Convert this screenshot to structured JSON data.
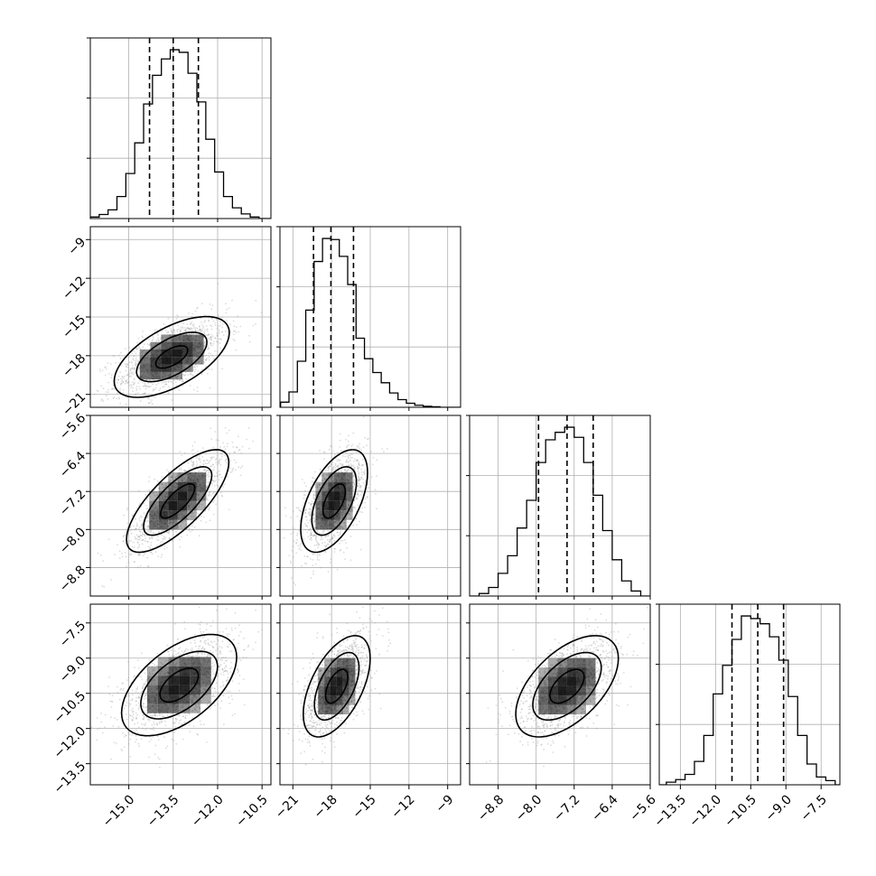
{
  "chart_data": {
    "type": "corner",
    "parameters": [
      {
        "range": [
          -16.3,
          -10.2
        ],
        "ticks": [
          "−15.0",
          "−13.5",
          "−12.0",
          "−10.5"
        ],
        "tick_values": [
          -15.0,
          -13.5,
          -12.0,
          -10.5
        ],
        "quantiles": [
          -14.3,
          -13.5,
          -12.65
        ],
        "hist_bins": [
          -16.3,
          -16.0,
          -15.7,
          -15.4,
          -15.1,
          -14.8,
          -14.5,
          -14.2,
          -13.9,
          -13.6,
          -13.3,
          -13.0,
          -12.7,
          -12.4,
          -12.1,
          -11.8,
          -11.5,
          -11.2,
          -10.9,
          -10.6
        ],
        "hist_counts": [
          3,
          8,
          17,
          43,
          88,
          148,
          224,
          280,
          312,
          330,
          325,
          284,
          228,
          155,
          91,
          43,
          21,
          9,
          3
        ]
      },
      {
        "range": [
          -22.0,
          -8.0
        ],
        "ticks": [
          "−21",
          "−18",
          "−15",
          "−12",
          "−9"
        ],
        "tick_values": [
          -21,
          -18,
          -15,
          -12,
          -9
        ],
        "quantiles": [
          -19.4,
          -18.05,
          -16.3
        ],
        "hist_bins": [
          -21.95,
          -21.3,
          -20.65,
          -20.0,
          -19.35,
          -18.7,
          -18.05,
          -17.4,
          -16.75,
          -16.1,
          -15.45,
          -14.8,
          -14.15,
          -13.5,
          -12.85,
          -12.2,
          -11.55,
          -10.9,
          -10.25,
          -9.6
        ],
        "hist_counts": [
          10,
          30,
          90,
          190,
          285,
          330,
          328,
          295,
          240,
          135,
          95,
          68,
          48,
          28,
          15,
          8,
          4,
          2,
          1
        ]
      },
      {
        "range": [
          -9.4,
          -5.6
        ],
        "ticks": [
          "−8.8",
          "−8.0",
          "−7.2",
          "−6.4",
          "−5.6"
        ],
        "tick_values": [
          -8.8,
          -8.0,
          -7.2,
          -6.4,
          -5.6
        ],
        "quantiles": [
          -7.95,
          -7.35,
          -6.8
        ],
        "hist_bins": [
          -9.2,
          -9.0,
          -8.8,
          -8.6,
          -8.4,
          -8.2,
          -8.0,
          -7.8,
          -7.6,
          -7.4,
          -7.2,
          -7.0,
          -6.8,
          -6.6,
          -6.4,
          -6.2,
          -6.0,
          -5.8
        ],
        "hist_counts": [
          5,
          17,
          45,
          80,
          135,
          190,
          265,
          310,
          325,
          335,
          315,
          265,
          200,
          130,
          72,
          30,
          10
        ]
      },
      {
        "range": [
          -14.4,
          -6.7
        ],
        "ticks": [
          "−13.5",
          "−12.0",
          "−10.5",
          "−9.0",
          "−7.5"
        ],
        "tick_values": [
          -13.5,
          -12.0,
          -10.5,
          -9.0,
          -7.5
        ],
        "quantiles": [
          -11.3,
          -10.2,
          -9.1
        ],
        "hist_bins": [
          -14.1,
          -13.7,
          -13.3,
          -12.9,
          -12.5,
          -12.1,
          -11.7,
          -11.3,
          -10.9,
          -10.5,
          -10.1,
          -9.7,
          -9.3,
          -8.9,
          -8.5,
          -8.1,
          -7.7,
          -7.3,
          -6.9
        ],
        "hist_counts": [
          5,
          10,
          20,
          45,
          95,
          175,
          230,
          280,
          325,
          320,
          310,
          285,
          240,
          170,
          95,
          40,
          15,
          8
        ]
      }
    ],
    "pairs": [
      {
        "x_param": 0,
        "y_param": 1,
        "center": [
          -13.55,
          -18.1
        ],
        "sd": [
          0.9,
          1.45
        ],
        "corr": 0.6,
        "levels": [
          0.5,
          1.1,
          1.8
        ]
      },
      {
        "x_param": 0,
        "y_param": 2,
        "center": [
          -13.35,
          -7.4
        ],
        "sd": [
          0.8,
          0.5
        ],
        "corr": 0.75,
        "levels": [
          0.6,
          1.2,
          1.8
        ]
      },
      {
        "x_param": 1,
        "y_param": 2,
        "center": [
          -17.8,
          -7.4
        ],
        "sd": [
          1.2,
          0.5
        ],
        "corr": 0.55,
        "levels": [
          0.6,
          1.2,
          1.8
        ]
      },
      {
        "x_param": 0,
        "y_param": 3,
        "center": [
          -13.3,
          -10.15
        ],
        "sd": [
          0.9,
          1.0
        ],
        "corr": 0.55,
        "levels": [
          0.6,
          1.2,
          1.8
        ]
      },
      {
        "x_param": 1,
        "y_param": 3,
        "center": [
          -17.6,
          -10.2
        ],
        "sd": [
          1.2,
          1.0
        ],
        "corr": 0.55,
        "levels": [
          0.6,
          1.2,
          1.8
        ]
      },
      {
        "x_param": 2,
        "y_param": 3,
        "center": [
          -7.35,
          -10.2
        ],
        "sd": [
          0.5,
          1.0
        ],
        "corr": 0.55,
        "levels": [
          0.6,
          1.2,
          1.8
        ]
      }
    ],
    "grid": true,
    "colors": {
      "line": "#000000",
      "grid": "#b0b0b0",
      "scatter": "#9a9a9a",
      "density": "#000000"
    }
  }
}
